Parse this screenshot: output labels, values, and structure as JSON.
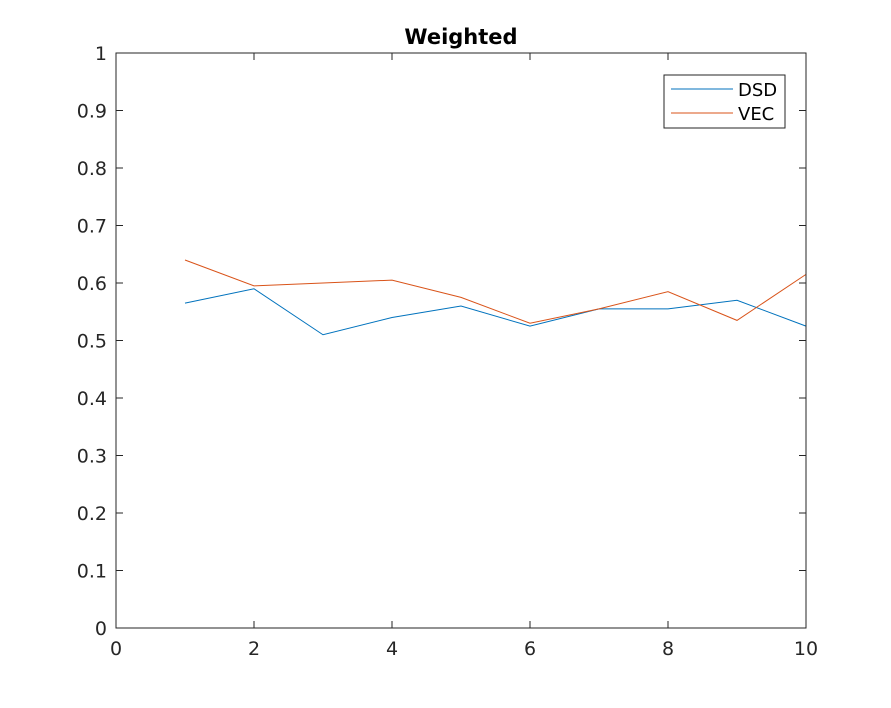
{
  "chart_data": {
    "type": "line",
    "title": "Weighted",
    "xlabel": "",
    "ylabel": "",
    "xlim": [
      0,
      10
    ],
    "ylim": [
      0,
      1
    ],
    "xticks": [
      0,
      2,
      4,
      6,
      8,
      10
    ],
    "yticks": [
      0,
      0.1,
      0.2,
      0.3,
      0.4,
      0.5,
      0.6,
      0.7,
      0.8,
      0.9,
      1
    ],
    "xtick_labels": [
      "0",
      "2",
      "4",
      "6",
      "8",
      "10"
    ],
    "ytick_labels": [
      "0",
      "0.1",
      "0.2",
      "0.3",
      "0.4",
      "0.5",
      "0.6",
      "0.7",
      "0.8",
      "0.9",
      "1"
    ],
    "grid": false,
    "legend_position": "top-right",
    "x": [
      1,
      2,
      3,
      4,
      5,
      6,
      7,
      8,
      9,
      10
    ],
    "series": [
      {
        "name": "DSD",
        "color": "#0072BD",
        "values": [
          0.565,
          0.59,
          0.51,
          0.54,
          0.56,
          0.525,
          0.555,
          0.555,
          0.57,
          0.525
        ]
      },
      {
        "name": "VEC",
        "color": "#D95319",
        "values": [
          0.64,
          0.595,
          0.6,
          0.605,
          0.575,
          0.53,
          0.555,
          0.585,
          0.535,
          0.615
        ]
      }
    ]
  }
}
